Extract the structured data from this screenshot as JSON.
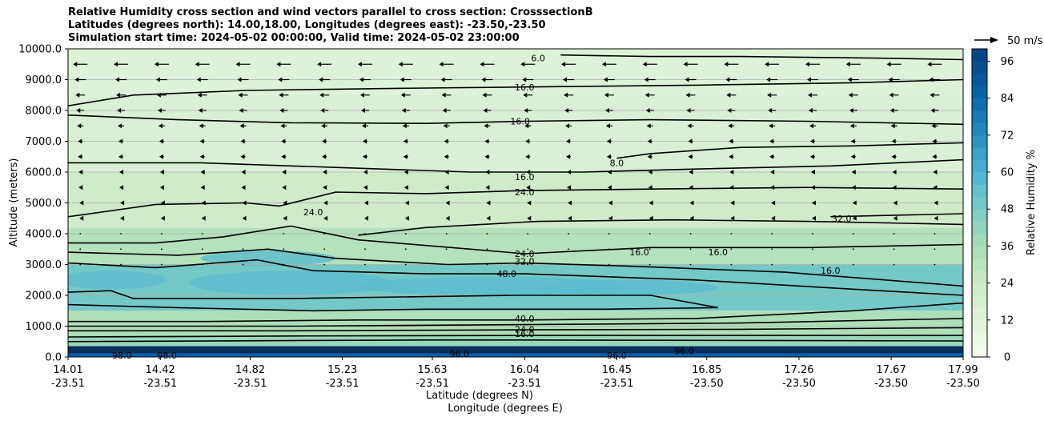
{
  "title_lines": [
    "Relative Humidity cross section and wind vectors parallel to cross section: CrosssectionB",
    "Latitudes (degrees north): 14.00,18.00, Longitudes (degrees east): -23.50,-23.50",
    "Simulation start time: 2024-05-02 00:00:00, Valid time: 2024-05-02 23:00:00"
  ],
  "chart_data": {
    "type": "heatmap",
    "ylabel": "Altitude (meters)",
    "xlabel": "Latitude (degrees N)",
    "xlabel2": "Longitude (degrees E)",
    "ylim": [
      0,
      10000
    ],
    "yticks": [
      "0.0",
      "1000.0",
      "2000.0",
      "3000.0",
      "4000.0",
      "5000.0",
      "6000.0",
      "7000.0",
      "8000.0",
      "9000.0",
      "10000.0"
    ],
    "ytick_values": [
      0,
      1000,
      2000,
      3000,
      4000,
      5000,
      6000,
      7000,
      8000,
      9000,
      10000
    ],
    "xticks_lat": [
      "14.01",
      "14.42",
      "14.82",
      "15.23",
      "15.63",
      "16.04",
      "16.45",
      "16.85",
      "17.26",
      "17.67",
      "17.99"
    ],
    "xticks_lon": [
      "-23.51",
      "-23.51",
      "-23.51",
      "-23.51",
      "-23.51",
      "-23.51",
      "-23.51",
      "-23.50",
      "-23.50",
      "-23.50",
      "-23.50"
    ],
    "grid": "horizontal",
    "colorbar": {
      "label": "Relative Humidity %",
      "range": [
        0,
        100
      ],
      "ticks": [
        "0",
        "12",
        "24",
        "36",
        "48",
        "60",
        "72",
        "84",
        "96"
      ],
      "tick_values": [
        0,
        12,
        24,
        36,
        48,
        60,
        72,
        84,
        96
      ],
      "colormap": "GnBu",
      "low_color": "#f7fcf0",
      "mid_color": "#7bccc4",
      "high_color": "#084081"
    },
    "wind_key": "50 m/s",
    "rh_layers": [
      {
        "alt_bottom": 0,
        "alt_top": 300,
        "rh": 96
      },
      {
        "alt_bottom": 300,
        "alt_top": 700,
        "rh": 40
      },
      {
        "alt_bottom": 700,
        "alt_top": 1500,
        "rh": 34
      },
      {
        "alt_bottom": 1500,
        "alt_top": 3000,
        "rh": 50
      },
      {
        "alt_bottom": 3000,
        "alt_top": 4200,
        "rh": 32
      },
      {
        "alt_bottom": 4200,
        "alt_top": 6000,
        "rh": 22
      },
      {
        "alt_bottom": 6000,
        "alt_top": 8500,
        "rh": 16
      },
      {
        "alt_bottom": 8500,
        "alt_top": 10000,
        "rh": 14
      }
    ],
    "contour_labels": [
      {
        "text": "6.0",
        "lat": 16.1,
        "alt": 9700
      },
      {
        "text": "16.0",
        "lat": 16.04,
        "alt": 8750
      },
      {
        "text": "16.0",
        "lat": 16.02,
        "alt": 7650
      },
      {
        "text": "8.0",
        "lat": 16.45,
        "alt": 6300
      },
      {
        "text": "16.0",
        "lat": 16.04,
        "alt": 5850
      },
      {
        "text": "24.0",
        "lat": 16.04,
        "alt": 5350
      },
      {
        "text": "24.0",
        "lat": 15.1,
        "alt": 4700
      },
      {
        "text": "32.0",
        "lat": 17.45,
        "alt": 4500
      },
      {
        "text": "24.0",
        "lat": 16.04,
        "alt": 3350
      },
      {
        "text": "32.0",
        "lat": 16.04,
        "alt": 3100
      },
      {
        "text": "16.0",
        "lat": 16.55,
        "alt": 3400
      },
      {
        "text": "16.0",
        "lat": 16.9,
        "alt": 3400
      },
      {
        "text": "16.0",
        "lat": 17.4,
        "alt": 2800
      },
      {
        "text": "48.0",
        "lat": 15.96,
        "alt": 2700
      },
      {
        "text": "40.0",
        "lat": 16.04,
        "alt": 1250
      },
      {
        "text": "24.0",
        "lat": 16.04,
        "alt": 900
      },
      {
        "text": "16.0",
        "lat": 16.04,
        "alt": 750
      },
      {
        "text": "96.0",
        "lat": 16.45,
        "alt": 50
      },
      {
        "text": "96.0",
        "lat": 16.75,
        "alt": 200
      },
      {
        "text": "98.0",
        "lat": 14.25,
        "alt": 50
      },
      {
        "text": "98.0",
        "lat": 14.45,
        "alt": 50
      },
      {
        "text": "96.0",
        "lat": 15.75,
        "alt": 100
      }
    ],
    "wind_rows": [
      {
        "alt": 9500,
        "u": -9
      },
      {
        "alt": 9000,
        "u": -7
      },
      {
        "alt": 8500,
        "u": -6
      },
      {
        "alt": 8000,
        "u": -5
      },
      {
        "alt": 7500,
        "u": -4
      },
      {
        "alt": 7000,
        "u": -3
      },
      {
        "alt": 6500,
        "u": -3
      },
      {
        "alt": 6000,
        "u": -2
      },
      {
        "alt": 5500,
        "u": -2
      },
      {
        "alt": 5000,
        "u": -1
      },
      {
        "alt": 4500,
        "u": -1
      },
      {
        "alt": 4000,
        "u": -0.5
      },
      {
        "alt": 3500,
        "u": -0.5
      },
      {
        "alt": 3000,
        "u": -0.3
      }
    ]
  }
}
